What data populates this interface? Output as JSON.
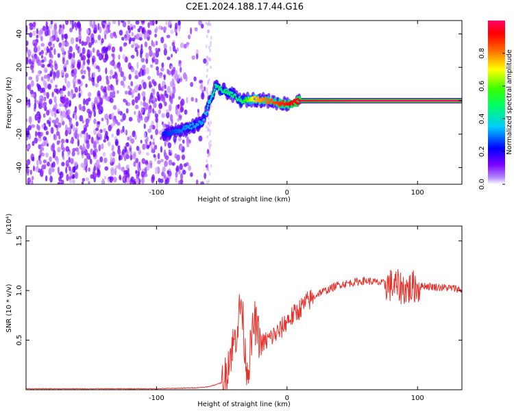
{
  "figure": {
    "title": "C2E1.2024.188.17.44.G16"
  },
  "colors": {
    "snr_line": "#e8312b",
    "frame": "#000000",
    "background": "#ffffff"
  },
  "chart_data": [
    {
      "type": "heatmap",
      "title": "C2E1.2024.188.17.44.G16",
      "xlabel": "Height of straight line (km)",
      "ylabel": "Frequency (Hz)",
      "xlim": [
        -200,
        134
      ],
      "ylim": [
        -50,
        48
      ],
      "xticks": [
        -100,
        0,
        100
      ],
      "xtick_labels": [
        "-100",
        "0",
        "100"
      ],
      "yticks": [
        -40,
        -20,
        0,
        20,
        40
      ],
      "ytick_labels": [
        "-40",
        "-20",
        "0",
        "20",
        "40"
      ],
      "colorbar": {
        "label": "Normalized spectral amplitude",
        "range": [
          0,
          1
        ],
        "ticks": [
          0,
          0.2,
          0.4,
          0.6,
          0.8
        ],
        "tick_labels": [
          "0.0",
          "0.2",
          "0.4",
          "0.6",
          "0.8"
        ],
        "colormap": [
          "#ffffff",
          "#7a00ff",
          "#0000ff",
          "#00ccff",
          "#00ff00",
          "#ffff00",
          "#ff0000",
          "#ff0066"
        ]
      },
      "ridge": {
        "description_points": [
          {
            "x": -95,
            "y": -20,
            "amp": 0.3
          },
          {
            "x": -85,
            "y": -18,
            "amp": 0.35
          },
          {
            "x": -75,
            "y": -16,
            "amp": 0.4
          },
          {
            "x": -65,
            "y": -13,
            "amp": 0.4
          },
          {
            "x": -55,
            "y": 8,
            "amp": 0.5
          },
          {
            "x": -45,
            "y": 5,
            "amp": 0.5
          },
          {
            "x": -35,
            "y": 0,
            "amp": 0.5
          },
          {
            "x": -25,
            "y": 1,
            "amp": 0.75
          },
          {
            "x": -15,
            "y": 0,
            "amp": 0.8
          },
          {
            "x": 0,
            "y": -2,
            "amp": 0.85
          },
          {
            "x": 10,
            "y": 0,
            "amp": 0.9
          },
          {
            "x": 50,
            "y": 0,
            "amp": 1.0
          },
          {
            "x": 134,
            "y": 0,
            "amp": 1.0
          }
        ]
      }
    },
    {
      "type": "line",
      "xlabel": "Height of straight line (km)",
      "ylabel": "SNR (10 * v/v)",
      "y_multiplier": "(x10⁴)",
      "xlim": [
        -200,
        134
      ],
      "ylim": [
        0,
        1.65
      ],
      "xticks": [
        -100,
        0,
        100
      ],
      "xtick_labels": [
        "-100",
        "0",
        "100"
      ],
      "yticks": [
        0.5,
        1.0,
        1.5
      ],
      "ytick_labels": [
        "0.5",
        "1.0",
        "1.5"
      ],
      "series": [
        {
          "x": [
            -200,
            -150,
            -100,
            -70,
            -60,
            -48,
            -45,
            -40,
            -35,
            -32,
            -30,
            -25,
            -20,
            -15,
            -10,
            -5,
            0,
            5,
            10,
            15,
            20,
            25,
            30,
            40,
            50,
            60,
            70,
            75,
            80,
            85,
            90,
            95,
            98,
            100,
            105,
            110,
            120,
            130,
            134
          ],
          "y": [
            0.01,
            0.01,
            0.01,
            0.02,
            0.03,
            0.08,
            0.3,
            0.5,
            0.9,
            0.35,
            0.2,
            0.7,
            0.45,
            0.5,
            0.55,
            0.6,
            0.7,
            0.75,
            0.82,
            0.88,
            0.93,
            0.98,
            1.0,
            1.06,
            1.08,
            1.1,
            1.08,
            1.07,
            1.05,
            1.04,
            1.02,
            1.02,
            1.05,
            1.03,
            1.05,
            1.04,
            1.03,
            1.02,
            1.0
          ]
        }
      ]
    }
  ]
}
